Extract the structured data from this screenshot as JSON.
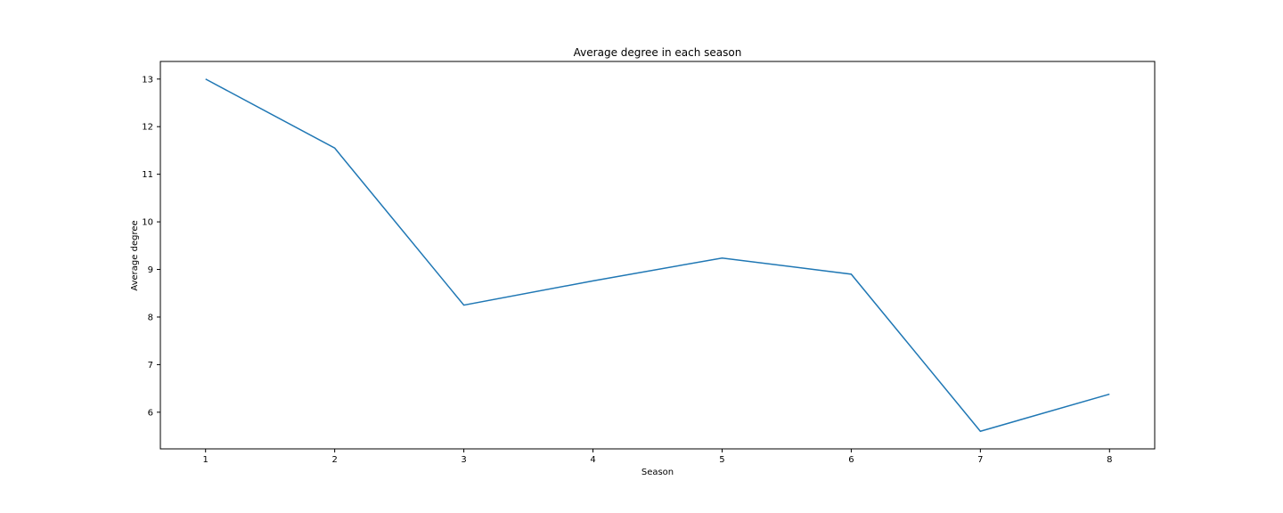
{
  "chart_data": {
    "type": "line",
    "title": "Average degree in each season",
    "xlabel": "Season",
    "ylabel": "Average degree",
    "x": [
      1,
      2,
      3,
      4,
      5,
      6,
      7,
      8
    ],
    "series": [
      {
        "values": [
          13.0,
          11.55,
          8.25,
          8.76,
          9.24,
          8.9,
          5.6,
          6.38
        ],
        "color": "#1f77b4"
      }
    ],
    "xticks": [
      "1",
      "2",
      "3",
      "4",
      "5",
      "6",
      "7",
      "8"
    ],
    "yticks": [
      "6",
      "7",
      "8",
      "9",
      "10",
      "11",
      "12",
      "13"
    ],
    "xlim": [
      0.65,
      8.35
    ],
    "ylim": [
      5.23,
      13.37
    ],
    "grid": false,
    "legend": "none"
  }
}
